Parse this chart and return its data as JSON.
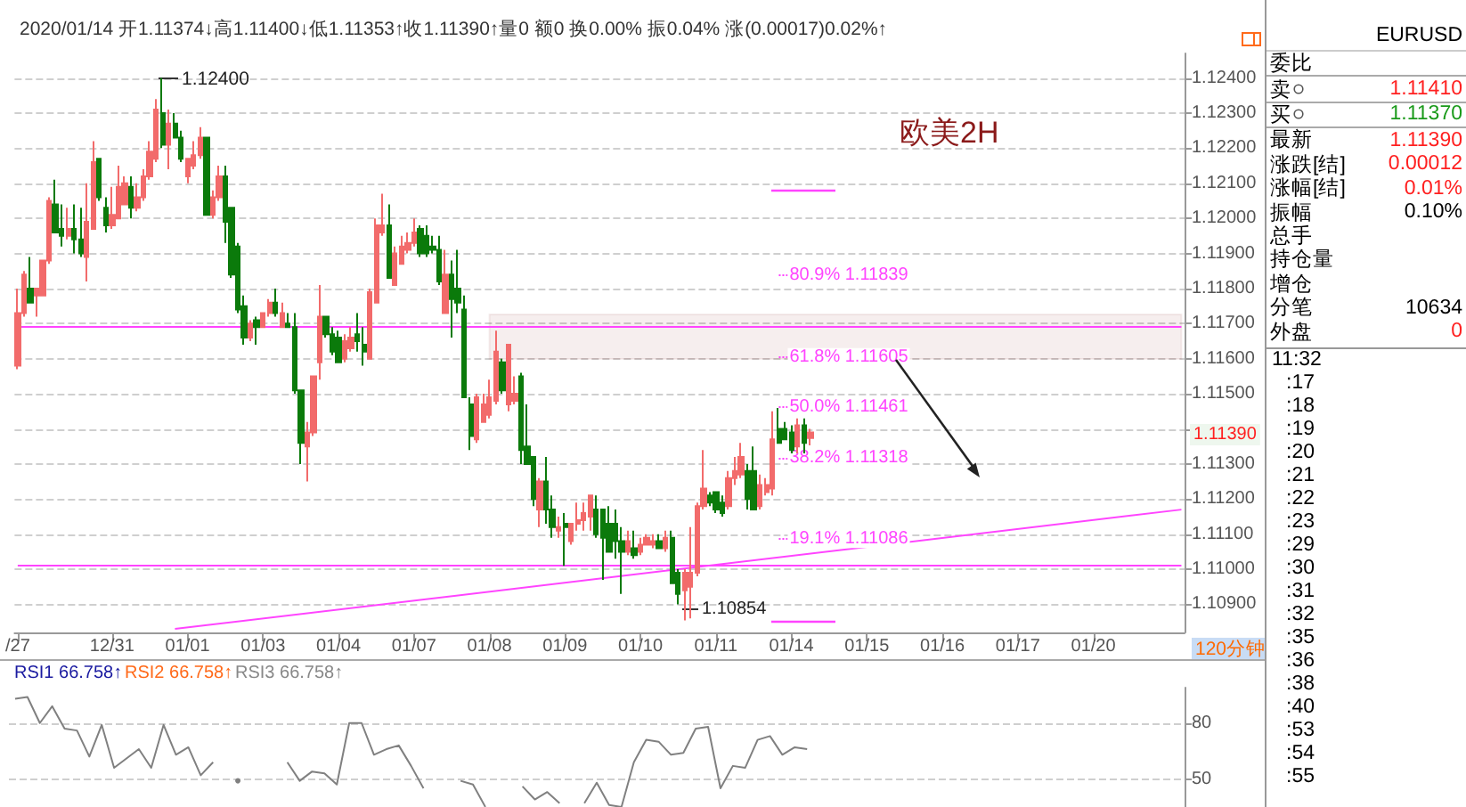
{
  "chart_data": [
    {
      "type": "candlestick",
      "subtitle": "2020/01/14 开1.11374↓高1.11400↓低1.11353↑收1.11390↑量0 额0 换0.00% 振0.04% 涨(0.00017)0.02%↑",
      "categories": [
        "/27",
        null,
        null,
        null,
        null,
        null,
        null,
        null,
        null,
        null,
        null,
        null,
        null,
        null,
        null,
        "12/31",
        null,
        null,
        null,
        null,
        null,
        null,
        null,
        null,
        null,
        null,
        null,
        "01/01",
        null,
        null,
        null,
        null,
        null,
        null,
        null,
        null,
        null,
        null,
        null,
        "01/03",
        null,
        null,
        null,
        null,
        null,
        null,
        null,
        null,
        null,
        null,
        null,
        "01/04",
        null,
        null,
        null,
        null,
        null,
        null,
        null,
        null,
        null,
        null,
        null,
        "01/07",
        null,
        null,
        null,
        null,
        null,
        null,
        null,
        null,
        null,
        null,
        null,
        "01/08",
        null,
        null,
        null,
        null,
        null,
        null,
        null,
        null,
        null,
        null,
        null,
        "01/09",
        null,
        null,
        null,
        null,
        null,
        null,
        null,
        null,
        null,
        null,
        null,
        "01/10",
        null,
        null,
        null,
        null,
        null,
        null,
        null,
        null,
        null,
        null,
        null,
        "01/11",
        null,
        null,
        null,
        null,
        null,
        null,
        null,
        null,
        null,
        null,
        null,
        "01/14",
        null,
        null,
        null,
        null,
        null,
        null,
        null,
        null,
        null,
        null,
        null,
        "01/15",
        null,
        null,
        null,
        null,
        null,
        null,
        null,
        null,
        null,
        null,
        null,
        "01/16",
        null,
        null,
        null,
        null,
        null,
        null,
        null,
        null,
        null,
        null,
        null,
        "01/17",
        null,
        null,
        null,
        null,
        null,
        null,
        null,
        null,
        null,
        null,
        null,
        "01/20",
        null,
        null,
        null,
        null,
        null,
        null,
        null,
        null,
        null,
        null,
        null,
        null,
        null,
        null
      ],
      "ohlc": [
        [
          1.1158,
          1.118,
          1.1157,
          1.1173
        ],
        [
          1.1173,
          1.1185,
          1.1172,
          1.1184
        ],
        [
          1.118,
          1.1189,
          1.1176,
          1.1176
        ],
        [
          1.1178,
          1.118,
          1.1172,
          1.118
        ],
        [
          1.1178,
          1.1188,
          1.1178,
          1.1188
        ],
        [
          1.1188,
          1.1206,
          1.1187,
          1.1205
        ],
        [
          1.1204,
          1.1211,
          1.1196,
          1.1196
        ],
        [
          1.1197,
          1.1204,
          1.1192,
          1.1195
        ],
        [
          1.1195,
          1.1203,
          1.1194,
          1.1197
        ],
        [
          1.1197,
          1.1204,
          1.119,
          1.1194
        ],
        [
          1.1194,
          1.1203,
          1.1189,
          1.119
        ],
        [
          1.1189,
          1.121,
          1.1182,
          1.1199
        ],
        [
          1.1197,
          1.1222,
          1.1197,
          1.1216
        ],
        [
          1.1217,
          1.1217,
          1.1205,
          1.1206
        ],
        [
          1.1203,
          1.1206,
          1.1196,
          1.1198
        ],
        [
          1.1198,
          1.1209,
          1.1197,
          1.1201
        ],
        [
          1.12,
          1.1215,
          1.12,
          1.1209
        ],
        [
          1.1204,
          1.1212,
          1.1204,
          1.121
        ],
        [
          1.1209,
          1.1212,
          1.12,
          1.1203
        ],
        [
          1.1203,
          1.121,
          1.1202,
          1.1206
        ],
        [
          1.1206,
          1.1214,
          1.1205,
          1.1212
        ],
        [
          1.1212,
          1.1222,
          1.1211,
          1.1219
        ],
        [
          1.1217,
          1.1234,
          1.1216,
          1.1231
        ],
        [
          1.123,
          1.124,
          1.122,
          1.1221
        ],
        [
          1.1221,
          1.1231,
          1.1214,
          1.1227
        ],
        [
          1.1227,
          1.123,
          1.1223,
          1.1223
        ],
        [
          1.1223,
          1.1225,
          1.1216,
          1.1217
        ],
        [
          1.1212,
          1.1217,
          1.121,
          1.1217
        ],
        [
          1.1215,
          1.1222,
          1.1214,
          1.1218
        ],
        [
          1.1218,
          1.1226,
          1.1217,
          1.1223
        ],
        [
          1.1223,
          1.1223,
          1.1201,
          1.1201
        ],
        [
          1.1201,
          1.1208,
          1.12,
          1.1206
        ],
        [
          1.1206,
          1.1215,
          1.1205,
          1.1212
        ],
        [
          1.1212,
          1.1215,
          1.1193,
          1.1199
        ],
        [
          1.1203,
          1.1203,
          1.1183,
          1.1184
        ],
        [
          1.1192,
          1.1193,
          1.1173,
          1.1174
        ],
        [
          1.1175,
          1.1178,
          1.1164,
          1.1166
        ],
        [
          1.1166,
          1.1171,
          1.1165,
          1.117
        ],
        [
          1.1171,
          1.1172,
          1.1164,
          1.1169
        ],
        [
          1.1169,
          1.1173,
          1.1169,
          1.1173
        ],
        [
          1.1173,
          1.1177,
          1.1172,
          1.1176
        ],
        [
          1.1176,
          1.118,
          1.1172,
          1.1173
        ],
        [
          1.1169,
          1.1176,
          1.1169,
          1.1173
        ],
        [
          1.117,
          1.1173,
          1.1169,
          1.1169
        ],
        [
          1.1169,
          1.1173,
          1.115,
          1.1151
        ],
        [
          1.1151,
          1.1151,
          1.113,
          1.1136
        ],
        [
          1.1135,
          1.1142,
          1.1125,
          1.1139
        ],
        [
          1.1139,
          1.1155,
          1.1138,
          1.1155
        ],
        [
          1.1159,
          1.1181,
          1.1154,
          1.1172
        ],
        [
          1.1172,
          1.1172,
          1.1166,
          1.1167
        ],
        [
          1.1167,
          1.1169,
          1.1161,
          1.1162
        ],
        [
          1.1166,
          1.1168,
          1.1159,
          1.1159
        ],
        [
          1.116,
          1.1167,
          1.1159,
          1.1165
        ],
        [
          1.1163,
          1.1169,
          1.1162,
          1.1166
        ],
        [
          1.1167,
          1.1173,
          1.1162,
          1.1165
        ],
        [
          1.1164,
          1.1169,
          1.1158,
          1.1162
        ],
        [
          1.116,
          1.118,
          1.116,
          1.1179
        ],
        [
          1.1176,
          1.12,
          1.1176,
          1.1198
        ],
        [
          1.1196,
          1.1207,
          1.1195,
          1.1198
        ],
        [
          1.1198,
          1.1204,
          1.1183,
          1.1183
        ],
        [
          1.1181,
          1.1192,
          1.1181,
          1.119
        ],
        [
          1.1187,
          1.1195,
          1.1187,
          1.1192
        ],
        [
          1.1191,
          1.1196,
          1.119,
          1.1193
        ],
        [
          1.1193,
          1.12,
          1.1192,
          1.1196
        ],
        [
          1.1197,
          1.1198,
          1.1189,
          1.119
        ],
        [
          1.1195,
          1.1198,
          1.1189,
          1.119
        ],
        [
          1.1192,
          1.1195,
          1.119,
          1.1191
        ],
        [
          1.1191,
          1.1195,
          1.1181,
          1.1182
        ],
        [
          1.1173,
          1.1191,
          1.1173,
          1.1184
        ],
        [
          1.1184,
          1.1188,
          1.1166,
          1.1177
        ],
        [
          1.118,
          1.1191,
          1.1173,
          1.1176
        ],
        [
          1.1174,
          1.1178,
          1.1149,
          1.1149
        ],
        [
          1.1147,
          1.1149,
          1.1134,
          1.1138
        ],
        [
          1.1137,
          1.115,
          1.1136,
          1.1149
        ],
        [
          1.1142,
          1.115,
          1.1142,
          1.1147
        ],
        [
          1.1144,
          1.1154,
          1.1143,
          1.1149
        ],
        [
          1.1148,
          1.1168,
          1.1147,
          1.1162
        ],
        [
          1.1159,
          1.116,
          1.115,
          1.1151
        ],
        [
          1.1147,
          1.1164,
          1.1145,
          1.1164
        ],
        [
          1.1148,
          1.1155,
          1.1147,
          1.115
        ],
        [
          1.1155,
          1.1156,
          1.113,
          1.1134
        ],
        [
          1.1135,
          1.1147,
          1.113,
          1.113
        ],
        [
          1.1132,
          1.1132,
          1.1118,
          1.112
        ],
        [
          1.1117,
          1.1126,
          1.1112,
          1.1125
        ],
        [
          1.1125,
          1.1132,
          1.1113,
          1.1117
        ],
        [
          1.1117,
          1.1121,
          1.1109,
          1.1112
        ],
        [
          1.1111,
          1.1115,
          1.1109,
          1.1112
        ],
        [
          1.1113,
          1.1116,
          1.1101,
          1.1112
        ],
        [
          1.1108,
          1.1113,
          1.1107,
          1.1113
        ],
        [
          1.1113,
          1.1119,
          1.1111,
          1.1114
        ],
        [
          1.1114,
          1.1119,
          1.1111,
          1.1116
        ],
        [
          1.1115,
          1.1121,
          1.1111,
          1.1121
        ],
        [
          1.1117,
          1.1121,
          1.1109,
          1.111
        ],
        [
          1.1117,
          1.1117,
          1.1097,
          1.1109
        ],
        [
          1.1113,
          1.1118,
          1.1105,
          1.1105
        ],
        [
          1.1113,
          1.1117,
          1.1103,
          1.1108
        ],
        [
          1.1108,
          1.1112,
          1.1093,
          1.1105
        ],
        [
          1.1105,
          1.1111,
          1.1104,
          1.1108
        ],
        [
          1.1106,
          1.1111,
          1.1103,
          1.1104
        ],
        [
          1.1105,
          1.1109,
          1.1104,
          1.1107
        ],
        [
          1.1107,
          1.111,
          1.1107,
          1.1109
        ],
        [
          1.1107,
          1.111,
          1.1106,
          1.1108
        ],
        [
          1.1108,
          1.111,
          1.1106,
          1.1106
        ],
        [
          1.1106,
          1.1111,
          1.1105,
          1.1109
        ],
        [
          1.1109,
          1.1111,
          1.1096,
          1.1096
        ],
        [
          1.1099,
          1.11,
          1.109,
          1.1093
        ],
        [
          1.1094,
          1.11,
          1.10854,
          1.1099
        ],
        [
          1.1095,
          1.1112,
          1.1086,
          1.1099
        ],
        [
          1.1099,
          1.1119,
          1.1098,
          1.1118
        ],
        [
          1.1118,
          1.1134,
          1.1117,
          1.1123
        ],
        [
          1.1121,
          1.1122,
          1.1118,
          1.1119
        ],
        [
          1.1122,
          1.1122,
          1.1116,
          1.1117
        ],
        [
          1.1119,
          1.1121,
          1.1115,
          1.1116
        ],
        [
          1.1118,
          1.1128,
          1.1117,
          1.1126
        ],
        [
          1.1126,
          1.1132,
          1.1124,
          1.1128
        ],
        [
          1.1127,
          1.1136,
          1.1126,
          1.1132
        ],
        [
          1.1128,
          1.113,
          1.1117,
          1.112
        ],
        [
          1.1128,
          1.1135,
          1.1117,
          1.1117
        ],
        [
          1.1118,
          1.1127,
          1.1117,
          1.1124
        ],
        [
          1.1122,
          1.1126,
          1.1121,
          1.1124
        ],
        [
          1.1123,
          1.1145,
          1.1121,
          1.1137
        ],
        [
          1.114,
          1.1146,
          1.1136,
          1.1136
        ],
        [
          1.114,
          1.1142,
          1.1137,
          1.1137
        ],
        [
          1.1139,
          1.1141,
          1.1133,
          1.1134
        ],
        [
          1.1135,
          1.1143,
          1.1133,
          1.1141
        ],
        [
          1.1141,
          1.1143,
          1.1133,
          1.1136
        ],
        [
          1.11374,
          1.114,
          1.11353,
          1.1139
        ],
        null,
        null,
        null,
        null,
        null,
        null,
        null,
        null,
        null,
        null,
        null,
        null,
        null,
        null,
        null,
        null,
        null,
        null,
        null,
        null,
        null,
        null,
        null,
        null,
        null,
        null,
        null,
        null,
        null,
        null,
        null,
        null,
        null,
        null,
        null,
        null,
        null,
        null,
        null,
        null,
        null,
        null,
        null,
        null,
        null,
        null,
        null,
        null,
        null,
        null,
        null,
        null,
        null,
        null,
        null,
        null,
        null,
        null,
        null
      ],
      "series": [
        {
          "type": "line",
          "color": "#ff44ff",
          "values": [
            null,
            null,
            null,
            null,
            null,
            null,
            null,
            null,
            null,
            null,
            null,
            null,
            null,
            null,
            null,
            null,
            null,
            null,
            null,
            null,
            null,
            null,
            null,
            null,
            null,
            1.1083,
            null,
            null,
            null,
            null,
            null,
            null,
            null,
            null,
            null,
            null,
            null,
            null,
            null,
            null,
            null,
            null,
            null,
            null,
            null,
            null,
            null,
            null,
            null,
            null,
            null,
            null,
            null,
            null,
            null,
            null,
            null,
            null,
            null,
            null,
            null,
            null,
            null,
            null,
            null,
            null,
            null,
            null,
            null,
            null,
            null,
            null,
            null,
            null,
            null,
            null,
            null,
            null,
            null,
            null,
            null,
            null,
            null,
            null,
            null,
            null,
            null,
            null,
            null,
            null,
            null,
            null,
            null,
            null,
            null,
            null,
            null,
            null,
            null,
            null,
            null,
            null,
            null,
            null,
            null,
            null,
            null,
            null,
            null,
            null,
            null,
            null,
            null,
            null,
            null,
            null,
            null,
            null,
            null,
            null,
            null,
            null,
            null,
            null,
            null,
            null,
            null,
            null,
            null,
            null,
            null,
            null,
            null,
            null,
            null,
            null,
            null,
            null,
            null,
            null,
            null,
            null,
            null,
            null,
            null,
            null,
            null,
            null,
            null,
            null,
            null,
            null,
            null,
            null,
            null,
            null,
            null,
            null,
            null,
            null,
            null,
            null,
            null,
            null,
            null,
            null,
            null,
            null,
            null,
            null,
            null,
            null,
            null,
            null,
            null,
            null,
            null,
            null,
            null,
            null,
            null,
            null,
            null,
            null,
            null,
            1.1117
          ]
        }
      ],
      "ylim": [
        1.1082,
        1.1247
      ],
      "yticks": [
        {
          "value": 1.109,
          "label": "1.10900"
        },
        {
          "value": 1.11,
          "label": "1.11000"
        },
        {
          "value": 1.111,
          "label": "1.11100"
        },
        {
          "value": 1.112,
          "label": "1.11200"
        },
        {
          "value": 1.113,
          "label": "1.11300"
        },
        {
          "value": 1.114,
          "label": null
        },
        {
          "value": 1.115,
          "label": "1.11500"
        },
        {
          "value": 1.116,
          "label": "1.11600"
        },
        {
          "value": 1.117,
          "label": "1.11700"
        },
        {
          "value": 1.118,
          "label": "1.11800"
        },
        {
          "value": 1.119,
          "label": "1.11900"
        },
        {
          "value": 1.12,
          "label": "1.12000"
        },
        {
          "value": 1.121,
          "label": "1.12100"
        },
        {
          "value": 1.122,
          "label": "1.12200"
        },
        {
          "value": 1.123,
          "label": "1.12300"
        },
        {
          "value": 1.124,
          "label": "1.12400"
        }
      ],
      "grid": "y",
      "ref_lines": [
        {
          "axis": "y",
          "value": 1.1169,
          "color": "#ff44ff"
        },
        {
          "axis": "y",
          "value": 1.1101,
          "color": "#ff44ff"
        },
        {
          "axis": "y",
          "value": 1.11839,
          "label": "80.9% 1.11839",
          "color": "#ff44ff",
          "line_style": "dotted"
        },
        {
          "axis": "y",
          "value": 1.11605,
          "label": "61.8% 1.11605",
          "color": "#ff44ff",
          "line_style": "dotted"
        },
        {
          "axis": "y",
          "value": 1.11461,
          "label": "50.0% 1.11461",
          "color": "#ff44ff",
          "line_style": "dotted"
        },
        {
          "axis": "y",
          "value": 1.11318,
          "label": "38.2% 1.11318",
          "color": "#ff44ff",
          "line_style": "dotted"
        },
        {
          "axis": "y",
          "value": 1.11086,
          "label": "19.1% 1.11086",
          "color": "#ff44ff",
          "line_style": "dotted"
        }
      ],
      "bands": [
        {
          "axis": "y",
          "from": 1.11599,
          "to": 1.11726,
          "color": "#8b2a2a"
        }
      ],
      "annotations": [
        "欧美2H",
        "120分钟",
        "1.12400",
        "1.10854",
        "1.11390"
      ]
    },
    {
      "type": "line",
      "color": "#808080",
      "categories": [
        null,
        null,
        null,
        null,
        null,
        null,
        null,
        null,
        null,
        null,
        null,
        null,
        null,
        null,
        null,
        null,
        null,
        null,
        null,
        null,
        null,
        null,
        null,
        null,
        null,
        null,
        null,
        null,
        null,
        null,
        null,
        null,
        null,
        null,
        null,
        null,
        null,
        null,
        null,
        null,
        null,
        null,
        null,
        null,
        null,
        null,
        null,
        null,
        null,
        null,
        null,
        null,
        null,
        null,
        null,
        null,
        null,
        null,
        null,
        null,
        null,
        null,
        null,
        null,
        null,
        null,
        null,
        null,
        null,
        null,
        null,
        null,
        null,
        null,
        null,
        null,
        null,
        null,
        null,
        null,
        null,
        null,
        null,
        null,
        null,
        null,
        null,
        null,
        null,
        null,
        null,
        null,
        null,
        null,
        null
      ],
      "values": [
        93,
        94,
        80,
        89,
        77,
        76,
        62,
        79,
        56,
        61,
        66,
        56,
        79,
        63,
        67,
        52,
        59,
        null,
        49,
        null,
        null,
        null,
        59,
        49,
        54,
        53,
        47,
        80,
        80,
        63,
        66,
        68,
        57,
        45,
        null,
        null,
        49,
        47,
        35,
        null,
        null,
        46,
        39,
        43,
        37,
        null,
        37,
        48,
        36,
        35,
        59,
        71,
        70,
        63,
        64,
        77,
        78,
        45,
        57,
        56,
        71,
        73,
        63,
        67,
        66,
        null,
        null,
        null,
        null,
        null,
        null,
        null,
        null,
        null,
        null,
        null,
        null,
        null,
        null,
        null,
        null,
        null,
        null,
        null,
        null,
        null,
        null,
        null,
        null,
        null,
        null,
        null,
        null,
        null,
        null
      ],
      "ylim": [
        34,
        99
      ],
      "yticks": [
        50,
        80
      ],
      "grid": "y",
      "annotations": [
        "RSI1 66.758↑",
        "RSI2 66.758↑",
        "RSI3 66.758↑"
      ]
    },
    {
      "type": "other",
      "title": "EURUSD",
      "categories": [
        "委比",
        "卖",
        "买",
        "最新",
        "涨跌[结]",
        "涨幅[结]",
        "振幅",
        "总手",
        "持仓量",
        "增仓",
        "分笔",
        "外盘"
      ],
      "value_labels": [
        null,
        "1.11410",
        "1.11370",
        "1.11390",
        "0.00012",
        "0.01%",
        "0.10%",
        null,
        null,
        null,
        "10634",
        "0"
      ],
      "colors": [
        "#000000",
        "#ff2020",
        "#1a9a1a",
        "#ff2020",
        "#ff2020",
        "#ff2020",
        "#000000",
        "#000000",
        "#000000",
        "#000000",
        "#000000",
        "#ff2020"
      ],
      "annotations": [
        "11:32",
        ":17",
        ":18",
        ":19",
        ":20",
        ":21",
        ":22",
        ":23",
        ":29",
        ":30",
        ":31",
        ":32",
        ":35",
        ":36",
        ":38",
        ":40",
        ":53",
        ":54",
        ":55"
      ]
    }
  ]
}
